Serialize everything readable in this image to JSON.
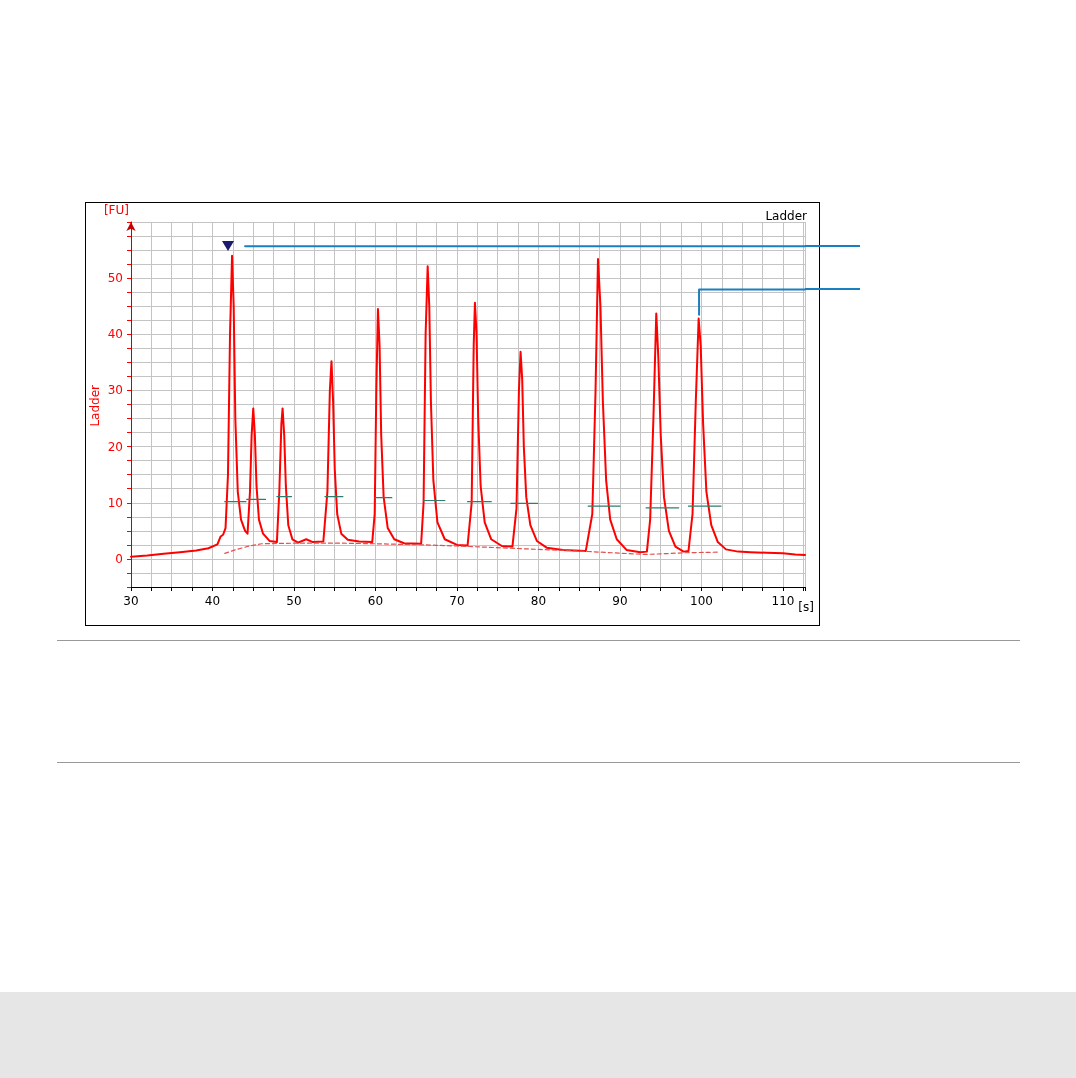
{
  "chart_data": {
    "type": "line",
    "title": "Ladder",
    "xlabel": "[s]",
    "ylabel": "[FU]",
    "xlim": [
      30,
      112.7
    ],
    "xticks": [
      30,
      40,
      50,
      60,
      70,
      80,
      90,
      100,
      110
    ],
    "ylim": [
      -5,
      60
    ],
    "yticks": [
      0,
      10,
      20,
      30,
      40,
      50
    ],
    "grid": true,
    "legend": "left",
    "marker": "none",
    "series": [
      {
        "name": "Ladder",
        "color": "#ff0000",
        "line_style": "solid",
        "x": [
          30,
          32,
          34,
          36,
          38,
          39.5,
          40.6,
          41,
          41.3,
          41.6,
          41.9,
          42.15,
          42.4,
          42.6,
          42.8,
          43.1,
          43.5,
          44,
          44.3,
          44.6,
          44.8,
          45,
          45.2,
          45.4,
          45.7,
          46.2,
          47,
          47.9,
          48.2,
          48.45,
          48.6,
          48.8,
          49,
          49.3,
          49.8,
          50.5,
          51.5,
          52.3,
          53.6,
          54.1,
          54.4,
          54.6,
          54.8,
          55,
          55.3,
          55.8,
          56.6,
          58,
          59.6,
          59.9,
          60.1,
          60.3,
          60.5,
          60.7,
          61,
          61.5,
          62.3,
          63.5,
          65.6,
          65.9,
          66.15,
          66.4,
          66.6,
          66.8,
          67.1,
          67.6,
          68.5,
          70,
          71.3,
          71.8,
          72.05,
          72.2,
          72.4,
          72.6,
          72.9,
          73.4,
          74.2,
          75.5,
          76.8,
          77.3,
          77.6,
          77.8,
          78,
          78.2,
          78.5,
          79,
          79.8,
          81,
          83,
          85.8,
          86.6,
          87,
          87.3,
          87.6,
          87.9,
          88.3,
          88.8,
          89.6,
          90.8,
          92.5,
          93.3,
          93.7,
          94.1,
          94.45,
          94.7,
          95,
          95.4,
          96,
          96.8,
          97.8,
          98.4,
          98.9,
          99.3,
          99.65,
          99.9,
          100.2,
          100.6,
          101.2,
          102,
          103,
          104.5,
          106,
          108,
          110,
          111.5,
          112.7
        ],
        "values": [
          0.4,
          0.6,
          0.9,
          1.2,
          1.5,
          1.9,
          2.6,
          4,
          4.3,
          5.5,
          15,
          40,
          54,
          45,
          25,
          12,
          7,
          5,
          4.5,
          12,
          22,
          26.8,
          22,
          13,
          7,
          4.5,
          3.2,
          3,
          12,
          24,
          26.8,
          22,
          13,
          6,
          3.5,
          2.9,
          3.5,
          3,
          3.1,
          12,
          30,
          35.2,
          28,
          16,
          8,
          4.5,
          3.4,
          3.1,
          3,
          8,
          30,
          44.5,
          38,
          22,
          11,
          5.5,
          3.5,
          2.8,
          2.7,
          10,
          40,
          52.1,
          45,
          28,
          14,
          6.5,
          3.5,
          2.5,
          2.4,
          10,
          38,
          45.6,
          40,
          25,
          13,
          6.5,
          3.5,
          2.3,
          2.2,
          9,
          30,
          36.9,
          32,
          20,
          11,
          6,
          3.2,
          2,
          1.6,
          1.4,
          8,
          30,
          53.4,
          45,
          28,
          14,
          7,
          3.5,
          1.6,
          1.2,
          1.3,
          7,
          25,
          43.7,
          36,
          22,
          11,
          5,
          2.2,
          1.3,
          1.4,
          8,
          28,
          42.8,
          38,
          24,
          12,
          6,
          3,
          1.7,
          1.3,
          1.2,
          1.1,
          1,
          0.8,
          0.7
        ]
      },
      {
        "color": "#e05050",
        "line_style": "dashed",
        "x": [
          41.5,
          43,
          44.5,
          46,
          50,
          56,
          60,
          66,
          70,
          75,
          80,
          85,
          89,
          93,
          95,
          98,
          102
        ],
        "values": [
          1,
          1.7,
          2.3,
          2.7,
          2.8,
          2.8,
          2.7,
          2.5,
          2.3,
          2,
          1.7,
          1.4,
          1.1,
          0.8,
          0.9,
          1.1,
          1.2
        ]
      },
      {
        "color": "#2e7d6e",
        "line_style": "solid",
        "x": [
          41.5,
          44.1,
          44.15,
          44.2,
          46.5,
          46.6,
          47.9,
          49.7,
          49.8,
          53.8,
          56,
          56.1,
          59.9,
          62,
          62.1,
          65.9,
          68.5,
          68.6,
          71.3,
          74.2,
          74.3,
          76.6,
          79.9,
          80,
          86.1,
          90,
          90.1,
          93.2,
          97.2,
          97.3,
          98.4,
          102.4
        ],
        "values": [
          10.2,
          10.2,
          null,
          10.6,
          10.6,
          null,
          11.1,
          11.1,
          null,
          11.1,
          11.1,
          null,
          10.9,
          10.9,
          null,
          10.4,
          10.4,
          null,
          10.2,
          10.2,
          null,
          9.9,
          9.9,
          null,
          9.4,
          9.4,
          null,
          9.1,
          9.1,
          null,
          9.4,
          9.4
        ]
      },
      {
        "color": "#1a7fc1",
        "line_style": "solid",
        "x": [
          44,
          112.7
        ],
        "values": [
          55.7,
          55.7
        ]
      },
      {
        "color": "#1a7fc1",
        "line_style": "solid",
        "x": [
          99.7,
          99.7,
          112.7
        ],
        "values": [
          43.5,
          48,
          48
        ]
      }
    ]
  }
}
